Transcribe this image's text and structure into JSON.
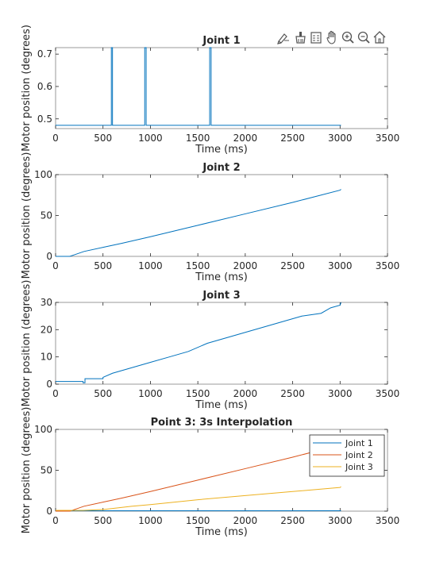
{
  "toolbar": {
    "icons": [
      "brush-edit-icon",
      "data-tips-icon",
      "insert-legend-icon",
      "pan-hand-icon",
      "zoom-in-icon",
      "zoom-out-icon",
      "restore-view-icon"
    ]
  },
  "colors": {
    "joint1": "#0072bd",
    "joint2": "#d95319",
    "joint3": "#edb120",
    "axis": "#262626",
    "frame": "#808080"
  },
  "chart_data": [
    {
      "type": "line",
      "title": "Joint 1",
      "xlabel": "Time (ms)",
      "ylabel": "Motor position (degrees)",
      "xlim": [
        0,
        3500
      ],
      "ylim": [
        0.47,
        0.72
      ],
      "xticks": [
        0,
        500,
        1000,
        1500,
        2000,
        2500,
        3000,
        3500
      ],
      "yticks": [
        0.5,
        0.6,
        0.7
      ],
      "ytick_labels": [
        "0.5",
        "0.6",
        "0.7"
      ],
      "series": [
        {
          "color": "#0072bd",
          "x": [
            0,
            588,
            588,
            600,
            600,
            940,
            940,
            955,
            955,
            1625,
            1625,
            1640,
            1640,
            3010
          ],
          "y": [
            0.48,
            0.48,
            0.72,
            0.72,
            0.48,
            0.48,
            0.72,
            0.72,
            0.48,
            0.48,
            0.72,
            0.72,
            0.48,
            0.48
          ]
        }
      ]
    },
    {
      "type": "line",
      "title": "Joint 2",
      "xlabel": "Time (ms)",
      "ylabel": "Motor position (degrees)",
      "xlim": [
        0,
        3500
      ],
      "ylim": [
        0,
        100
      ],
      "xticks": [
        0,
        500,
        1000,
        1500,
        2000,
        2500,
        3000,
        3500
      ],
      "yticks": [
        0,
        50,
        100
      ],
      "ytick_labels": [
        "0",
        "50",
        "100"
      ],
      "series": [
        {
          "color": "#0072bd",
          "x": [
            0,
            150,
            200,
            300,
            500,
            700,
            1000,
            1500,
            2000,
            2500,
            3000,
            3010
          ],
          "y": [
            0,
            0,
            2,
            6,
            11,
            16,
            24,
            38,
            52,
            66,
            81,
            82
          ]
        }
      ]
    },
    {
      "type": "line",
      "title": "Joint 3",
      "xlabel": "Time (ms)",
      "ylabel": "Motor position (degrees)",
      "xlim": [
        0,
        3500
      ],
      "ylim": [
        0,
        30
      ],
      "xticks": [
        0,
        500,
        1000,
        1500,
        2000,
        2500,
        3000,
        3500
      ],
      "yticks": [
        0,
        10,
        20,
        30
      ],
      "ytick_labels": [
        "0",
        "10",
        "20",
        "30"
      ],
      "series": [
        {
          "color": "#0072bd",
          "x": [
            0,
            290,
            290,
            310,
            310,
            500,
            500,
            600,
            800,
            1000,
            1200,
            1400,
            1600,
            1800,
            2000,
            2200,
            2400,
            2600,
            2800,
            2900,
            3000,
            3010
          ],
          "y": [
            1,
            1,
            0.5,
            0.5,
            2,
            2,
            2.5,
            4,
            6,
            8,
            10,
            12,
            15,
            17,
            19,
            21,
            23,
            25,
            26,
            28,
            29,
            30
          ]
        }
      ]
    },
    {
      "type": "line",
      "title": "Point 3: 3s Interpolation",
      "xlabel": "Time (ms)",
      "ylabel": "Motor position (degrees)",
      "xlim": [
        0,
        3500
      ],
      "ylim": [
        0,
        100
      ],
      "xticks": [
        0,
        500,
        1000,
        1500,
        2000,
        2500,
        3000,
        3500
      ],
      "yticks": [
        0,
        50,
        100
      ],
      "ytick_labels": [
        "0",
        "50",
        "100"
      ],
      "legend": "top-right",
      "series": [
        {
          "name": "Joint 1",
          "color": "#0072bd",
          "x": [
            0,
            3010
          ],
          "y": [
            0.5,
            0.5
          ]
        },
        {
          "name": "Joint 2",
          "color": "#d95319",
          "x": [
            0,
            150,
            200,
            300,
            500,
            700,
            1000,
            1500,
            2000,
            2500,
            3000,
            3010
          ],
          "y": [
            0,
            0,
            2,
            6,
            11,
            16,
            24,
            38,
            52,
            66,
            81,
            82
          ]
        },
        {
          "name": "Joint 3",
          "color": "#edb120",
          "x": [
            0,
            290,
            500,
            800,
            1000,
            1500,
            2000,
            2500,
            3000,
            3010
          ],
          "y": [
            1,
            1,
            2,
            6,
            8,
            14,
            19,
            24,
            29,
            30
          ]
        }
      ]
    }
  ]
}
